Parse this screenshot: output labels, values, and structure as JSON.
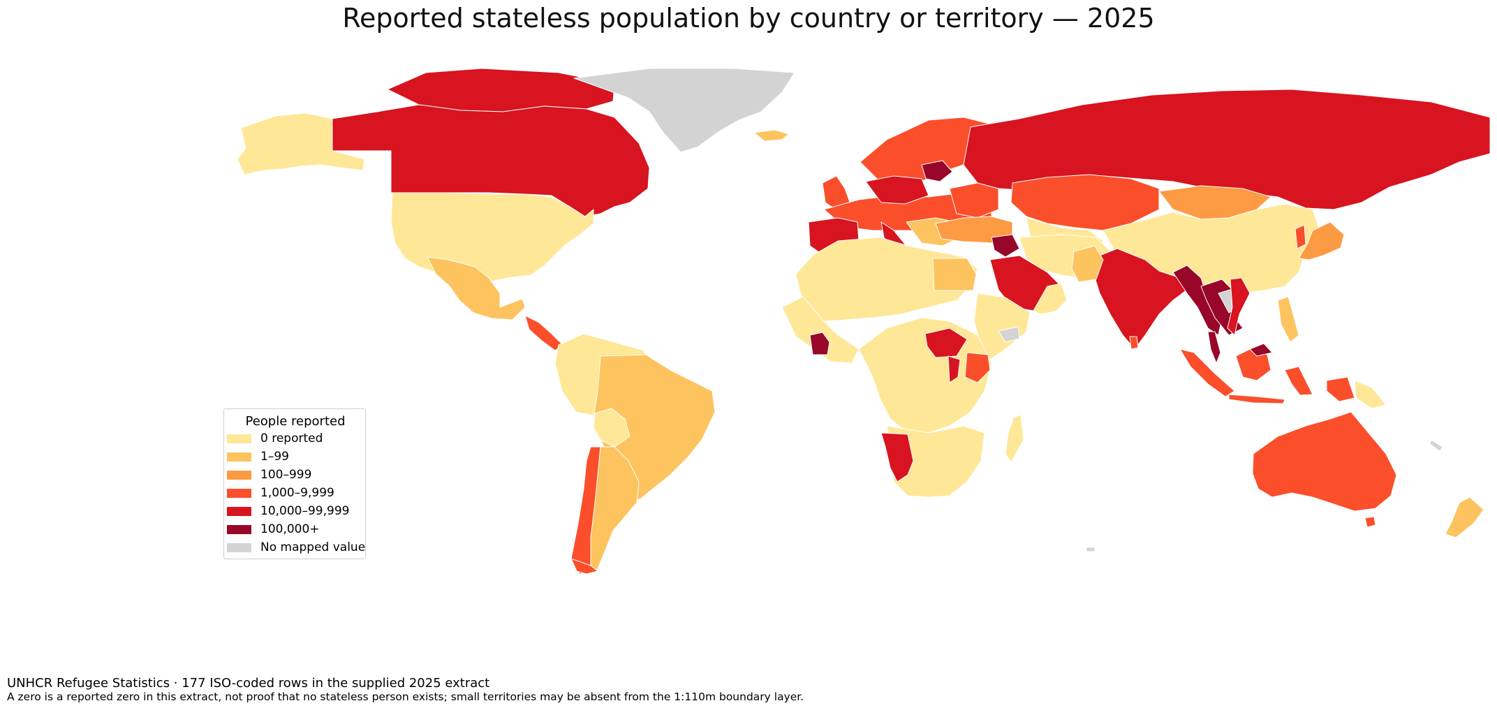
{
  "title": "Reported stateless population by country or territory — 2025",
  "legend": {
    "title": "People reported",
    "items": [
      {
        "label": "0 reported",
        "color": "#fee797"
      },
      {
        "label": "1–99",
        "color": "#fdc35f"
      },
      {
        "label": "100–999",
        "color": "#fc9b43"
      },
      {
        "label": "1,000–9,999",
        "color": "#fb4e2b"
      },
      {
        "label": "10,000–99,999",
        "color": "#d71420"
      },
      {
        "label": "100,000+",
        "color": "#98062a"
      },
      {
        "label": "No mapped value",
        "color": "#d3d3d3"
      }
    ]
  },
  "footer": {
    "source": "UNHCR Refugee Statistics · 177 ISO-coded rows in the supplied 2025 extract",
    "note": "A zero is a reported zero in this extract, not proof that no stateless person exists; small territories may be absent from the 1:110m boundary layer."
  }
}
